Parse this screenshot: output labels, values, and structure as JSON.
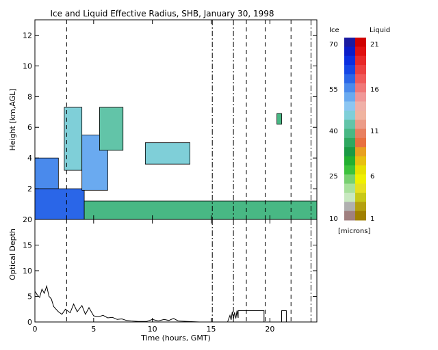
{
  "chart_data": [
    {
      "type": "heatmap",
      "title": "Ice and Liquid Effective Radius, SHB, January 30, 1998",
      "xlabel": "",
      "ylabel": "Height [km,AGL]",
      "xlim": [
        0,
        24
      ],
      "ylim": [
        0,
        13
      ],
      "xticks": [
        0,
        5,
        10,
        15,
        20
      ],
      "yticks": [
        2,
        4,
        6,
        8,
        10,
        12
      ],
      "vertical_markers": {
        "dashed": [
          2.7,
          18.0,
          19.6,
          21.8
        ],
        "dashdot": [
          15.1,
          16.9,
          23.5
        ]
      },
      "cloud_layers": [
        {
          "phase": "ice",
          "from": 0,
          "to": 2.0,
          "base": 2.0,
          "top": 4.0,
          "radius": 55
        },
        {
          "phase": "ice",
          "from": 0,
          "to": 4.2,
          "base": 0,
          "top": 2.0,
          "radius": 58
        },
        {
          "phase": "ice",
          "from": 2.5,
          "to": 4.0,
          "base": 3.2,
          "top": 7.3,
          "radius": 45
        },
        {
          "phase": "ice",
          "from": 4.0,
          "to": 6.2,
          "base": 1.9,
          "top": 5.5,
          "radius": 50
        },
        {
          "phase": "ice",
          "from": 5.5,
          "to": 7.5,
          "base": 4.5,
          "top": 7.3,
          "radius": 42
        },
        {
          "phase": "ice",
          "from": 9.4,
          "to": 13.2,
          "base": 3.6,
          "top": 5.0,
          "radius": 45
        },
        {
          "phase": "ice",
          "from": 4.2,
          "to": 24,
          "base": 0.0,
          "top": 1.2,
          "radius": 38
        },
        {
          "phase": "ice",
          "from": 20.6,
          "to": 21.0,
          "base": 6.2,
          "top": 6.9,
          "radius": 40
        }
      ],
      "colorbar": {
        "ice_label": "Ice",
        "liquid_label": "Liquid",
        "units_label": "[microns]",
        "ice_ticks": [
          "70",
          "55",
          "40",
          "25",
          "10"
        ],
        "liquid_ticks": [
          "21",
          "16",
          "11",
          "6",
          "1"
        ],
        "ice_colors": [
          "#1a1aa0",
          "#0b1cc8",
          "#0a2ee0",
          "#1446e6",
          "#2a66e8",
          "#4a8aec",
          "#6aaaf0",
          "#8cc6f2",
          "#7fcfd8",
          "#62c4a8",
          "#48b884",
          "#2ea860",
          "#1a9a44",
          "#22b030",
          "#3cc23c",
          "#78d070",
          "#a8e09c",
          "#c8e8c0",
          "#b0b0b0",
          "#a08080"
        ],
        "liquid_colors": [
          "#d00000",
          "#e01010",
          "#e82828",
          "#ec4040",
          "#f05a5a",
          "#f07878",
          "#f09898",
          "#f0b0a8",
          "#f0b4a0",
          "#ec9c88",
          "#e88060",
          "#e87040",
          "#e8a020",
          "#e8c010",
          "#e8e000",
          "#f0f000",
          "#e8e020",
          "#c8c818",
          "#b4a010",
          "#a08000"
        ]
      }
    },
    {
      "type": "line",
      "xlabel": "Time (hours, GMT)",
      "ylabel": "Optical Depth",
      "xlim": [
        0,
        24
      ],
      "ylim": [
        0,
        20
      ],
      "xticks": [
        0,
        5,
        10,
        15,
        20
      ],
      "yticks": [
        0,
        5,
        10,
        15,
        20
      ],
      "x": [
        0,
        0.2,
        0.4,
        0.6,
        0.8,
        1.0,
        1.2,
        1.4,
        1.6,
        1.8,
        2.0,
        2.3,
        2.6,
        3.0,
        3.3,
        3.6,
        4.0,
        4.3,
        4.6,
        5.0,
        5.4,
        5.8,
        6.2,
        6.6,
        7.0,
        7.4,
        7.8,
        8.2,
        8.8,
        9.5,
        10.0,
        10.5,
        11.0,
        11.4,
        11.8,
        12.2,
        13.0,
        14.0,
        15.0,
        16.4,
        16.6,
        16.7,
        16.8,
        16.9,
        17.0,
        17.1,
        17.2,
        17.3,
        17.3,
        19.5,
        19.5,
        20.0,
        21.0,
        21.0,
        21.4,
        21.4,
        22.0,
        24.0
      ],
      "values": [
        6.0,
        5.3,
        4.8,
        6.4,
        5.6,
        7.0,
        5.0,
        4.5,
        3.0,
        2.5,
        2.0,
        1.5,
        2.5,
        1.8,
        3.5,
        2.0,
        3.2,
        1.5,
        2.8,
        1.2,
        1.0,
        1.3,
        0.8,
        0.9,
        0.5,
        0.6,
        0.3,
        0.2,
        0.1,
        0.1,
        0.5,
        0.2,
        0.5,
        0.3,
        0.7,
        0.2,
        0.1,
        0.0,
        0.0,
        0.0,
        1.3,
        0.4,
        2.0,
        0.6,
        1.9,
        0.7,
        2.2,
        0.8,
        2.2,
        2.2,
        0.0,
        0.0,
        0.0,
        2.2,
        2.2,
        0.0,
        0.0,
        0.0
      ],
      "vertical_markers": {
        "dashed": [
          2.7,
          18.0,
          19.6,
          21.8
        ],
        "dashdot": [
          15.1,
          16.9,
          23.5
        ]
      }
    }
  ]
}
